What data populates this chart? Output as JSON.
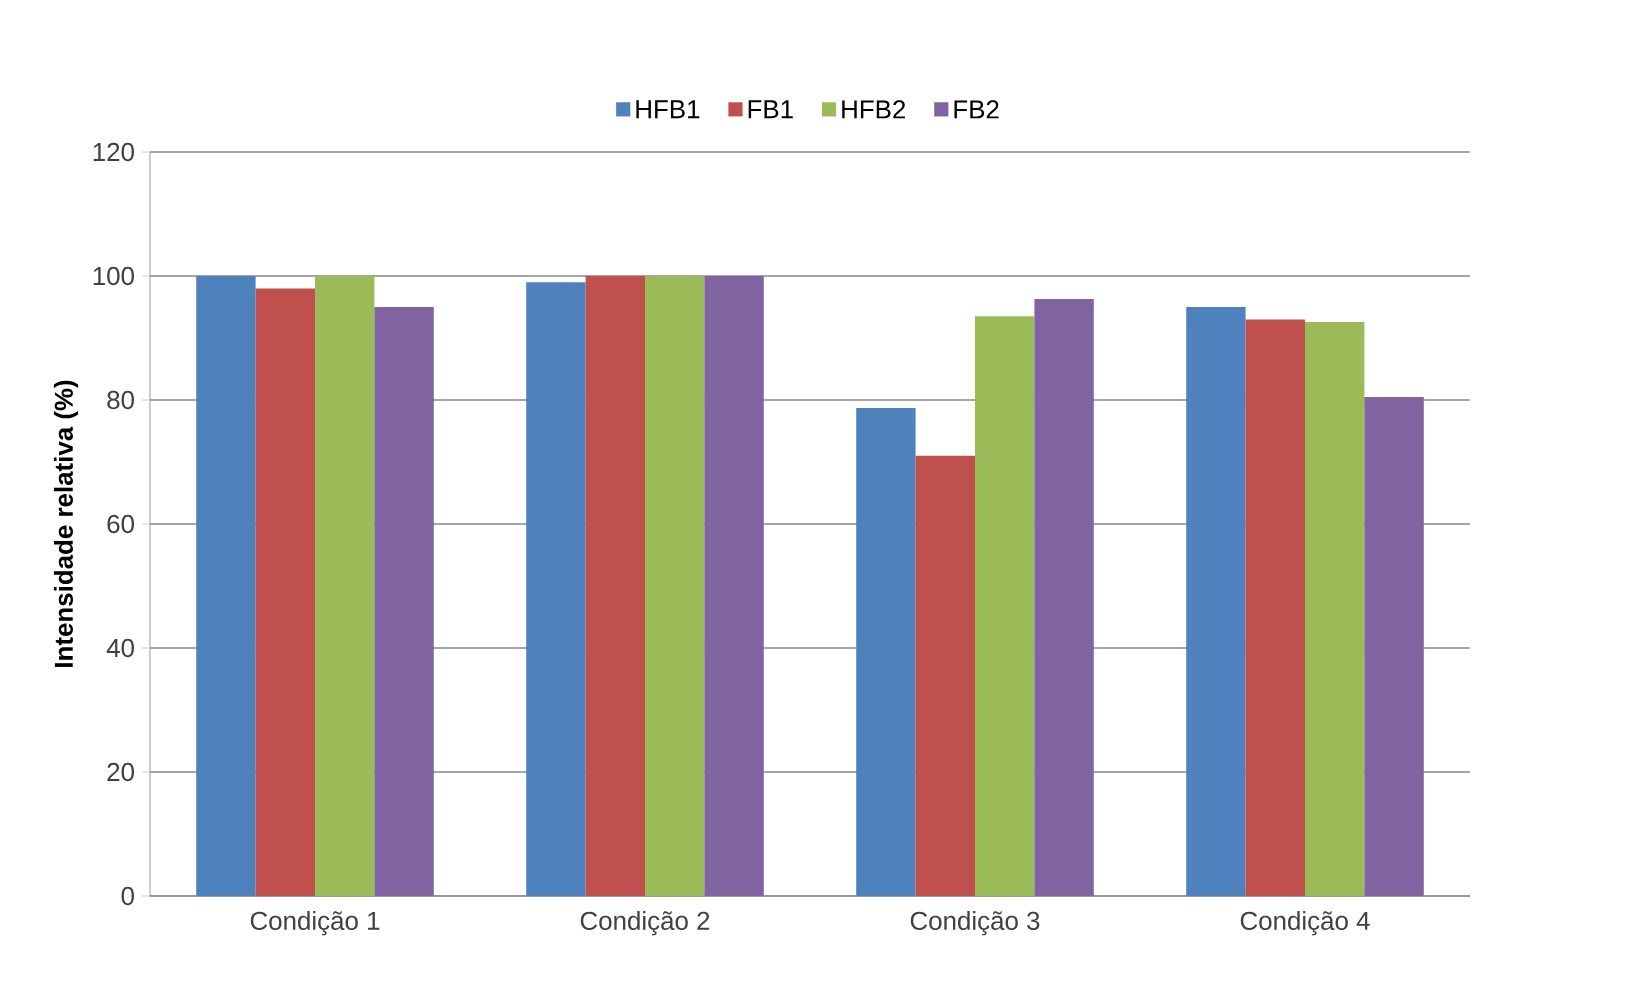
{
  "chart_data": {
    "type": "bar",
    "categories": [
      "Condição 1",
      "Condição 2",
      "Condição 3",
      "Condição 4"
    ],
    "ylabel": "Intensidade relativa (%)",
    "ylim": [
      0,
      120
    ],
    "yticks": [
      0,
      20,
      40,
      60,
      80,
      100,
      120
    ],
    "grid": "y",
    "legend": "top",
    "series": [
      {
        "name": "HFB1",
        "color": "#4f81bd",
        "values": [
          100,
          99,
          78.7,
          95
        ]
      },
      {
        "name": "FB1",
        "color": "#c0504d",
        "values": [
          98,
          100,
          71,
          93
        ]
      },
      {
        "name": "HFB2",
        "color": "#9bbb59",
        "values": [
          100,
          100,
          93.5,
          92.6
        ]
      },
      {
        "name": "FB2",
        "color": "#8064a2",
        "values": [
          95,
          100,
          96.3,
          80.5
        ]
      }
    ]
  }
}
